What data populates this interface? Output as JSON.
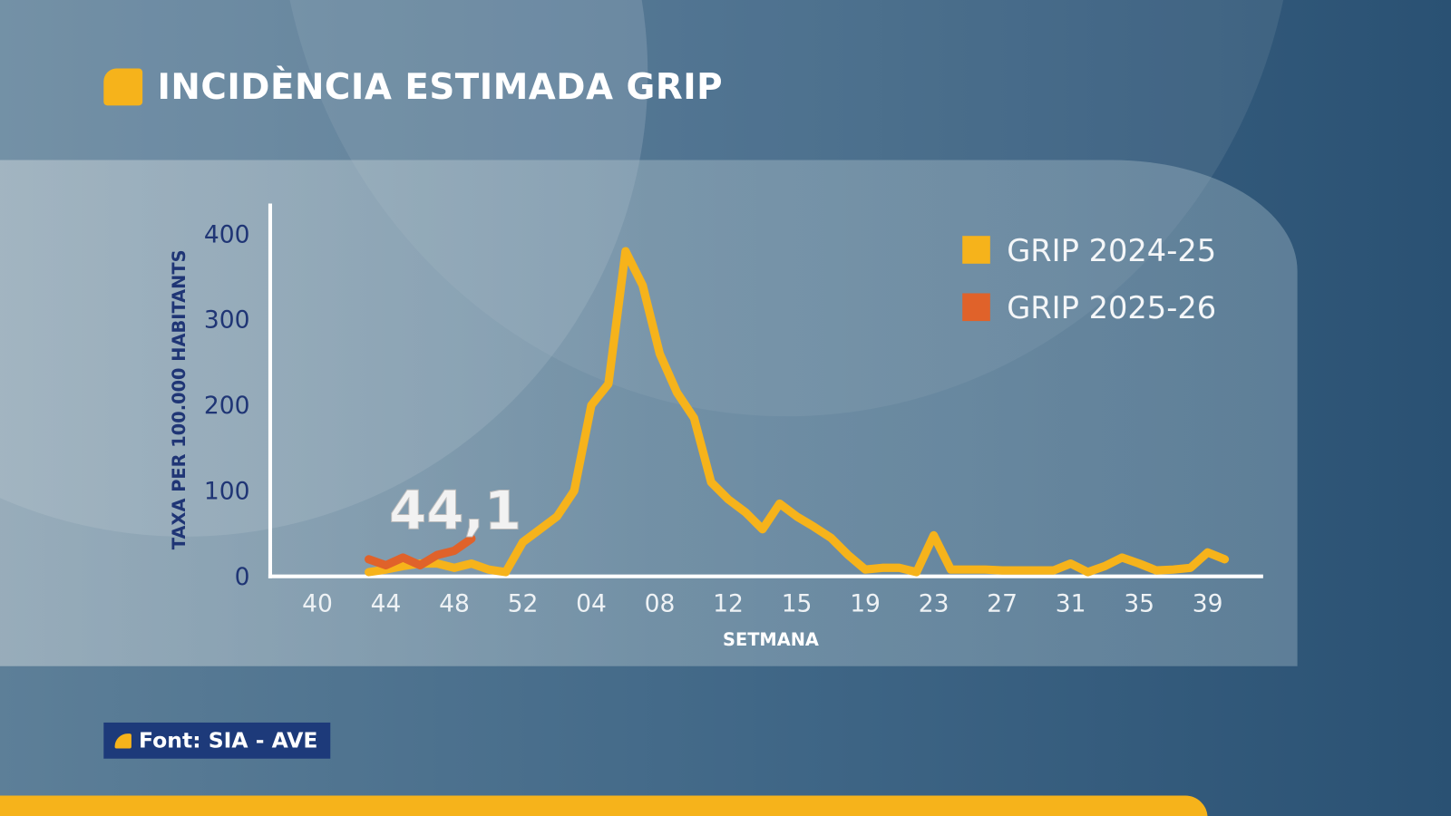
{
  "title": "INCIDÈNCIA ESTIMADA GRIP",
  "source": "Font: SIA - AVE",
  "colors": {
    "series_2024": "#f6b31b",
    "series_2025": "#e0622a",
    "source_bg": "#1d3a7a",
    "axis_text": "#1f3575"
  },
  "icons": {
    "title": "yellow-rounded-square-icon",
    "source": "yellow-quarter-shape-icon"
  },
  "chart_data": {
    "type": "line",
    "title": "",
    "xlabel": "SETMANA",
    "ylabel": "TAXA PER 100.000 HABITANTS",
    "ylim": [
      0,
      400
    ],
    "yticks": [
      "0",
      "100",
      "200",
      "300",
      "400"
    ],
    "xticks": [
      "40",
      "44",
      "48",
      "52",
      "04",
      "08",
      "12",
      "15",
      "19",
      "23",
      "27",
      "31",
      "35",
      "39"
    ],
    "grid": false,
    "legend": "top-right",
    "annotation": "44,1",
    "series": [
      {
        "name": "GRIP 2024-25",
        "start_index": 3,
        "values": [
          5,
          8,
          12,
          15,
          15,
          10,
          15,
          8,
          5,
          40,
          55,
          70,
          100,
          200,
          225,
          380,
          340,
          260,
          215,
          185,
          110,
          90,
          75,
          55,
          85,
          70,
          58,
          45,
          25,
          8,
          10,
          10,
          5,
          48,
          8,
          8,
          8,
          7,
          7,
          7,
          7,
          15,
          5,
          12,
          22,
          15,
          7,
          8,
          10,
          28,
          20
        ]
      },
      {
        "name": "GRIP 2025-26",
        "start_index": 3,
        "values": [
          20,
          13,
          22,
          13,
          25,
          30,
          44.1
        ]
      }
    ]
  }
}
